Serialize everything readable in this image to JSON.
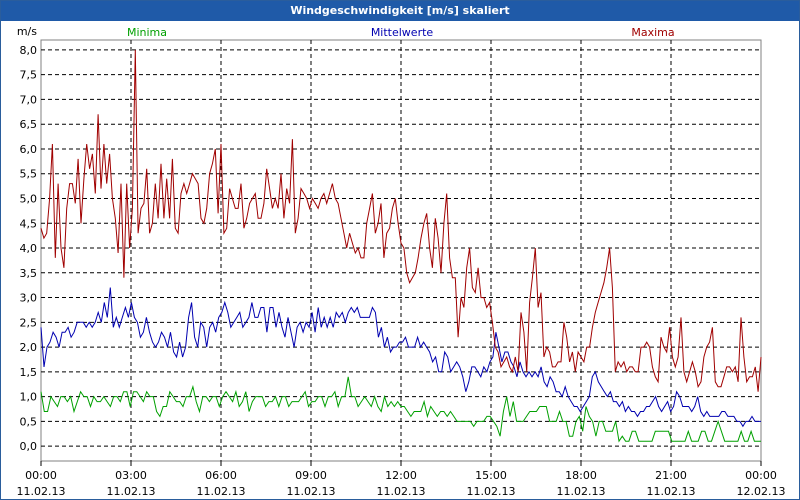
{
  "window": {
    "title": "Windgeschwindigkeit [m/s] skaliert"
  },
  "chart_data": {
    "type": "line",
    "title": "Windgeschwindigkeit [m/s] skaliert",
    "ylabel": "m/s",
    "xlabel": "",
    "ylim": [
      -0.3,
      8.2
    ],
    "xlim": [
      0,
      24
    ],
    "grid": true,
    "legend_position": "top",
    "y_ticks": [
      "0,0",
      "0,5",
      "1,0",
      "1,5",
      "2,0",
      "2,5",
      "3,0",
      "3,5",
      "4,0",
      "4,5",
      "5,0",
      "5,5",
      "6,0",
      "6,5",
      "7,0",
      "7,5",
      "8,0"
    ],
    "x_ticks": [
      {
        "time": "00:00",
        "date": "11.02.13"
      },
      {
        "time": "03:00",
        "date": "11.02.13"
      },
      {
        "time": "06:00",
        "date": "11.02.13"
      },
      {
        "time": "09:00",
        "date": "11.02.13"
      },
      {
        "time": "12:00",
        "date": "11.02.13"
      },
      {
        "time": "15:00",
        "date": "11.02.13"
      },
      {
        "time": "18:00",
        "date": "11.02.13"
      },
      {
        "time": "21:00",
        "date": "11.02.13"
      },
      {
        "time": "00:00",
        "date": "12.02.13"
      }
    ],
    "series": [
      {
        "name": "Minima",
        "color": "#00a000",
        "values": [
          1.1,
          0.7,
          0.7,
          1.0,
          0.9,
          0.8,
          1.0,
          1.0,
          0.9,
          1.0,
          0.7,
          0.9,
          1.1,
          1.0,
          1.0,
          0.8,
          1.0,
          0.9,
          0.9,
          1.0,
          0.9,
          0.8,
          1.0,
          1.0,
          0.9,
          1.1,
          1.1,
          0.8,
          1.1,
          1.1,
          1.0,
          0.9,
          1.1,
          1.0,
          1.0,
          0.7,
          0.6,
          0.8,
          0.8,
          1.1,
          1.0,
          0.9,
          0.9,
          0.8,
          1.0,
          1.0,
          1.2,
          0.9,
          0.7,
          1.0,
          1.0,
          0.9,
          1.0,
          1.0,
          0.8,
          1.0,
          1.1,
          1.0,
          0.9,
          1.1,
          0.8,
          0.9,
          1.1,
          0.7,
          0.9,
          1.0,
          1.0,
          1.0,
          0.8,
          0.9,
          0.9,
          1.0,
          0.8,
          1.0,
          1.0,
          0.8,
          0.9,
          0.9,
          0.9,
          1.0,
          1.1,
          0.8,
          0.9,
          0.9,
          1.0,
          1.0,
          0.8,
          1.0,
          1.0,
          1.1,
          0.8,
          1.0,
          1.0,
          1.4,
          1.0,
          1.0,
          0.8,
          0.9,
          1.0,
          0.9,
          0.8,
          1.0,
          0.8,
          0.7,
          1.0,
          0.8,
          0.9,
          0.8,
          0.9,
          0.8,
          0.8,
          0.7,
          0.6,
          0.7,
          0.7,
          0.7,
          0.9,
          0.6,
          0.8,
          0.7,
          0.6,
          0.7,
          0.7,
          0.6,
          0.7,
          0.6,
          0.5,
          0.5,
          0.5,
          0.5,
          0.5,
          0.4,
          0.5,
          0.5,
          0.5,
          0.6,
          0.6,
          0.5,
          0.4,
          0.2,
          0.7,
          1.0,
          0.6,
          0.9,
          0.5,
          0.5,
          0.5,
          0.6,
          0.7,
          0.7,
          0.7,
          0.8,
          0.8,
          0.8,
          0.5,
          0.5,
          0.5,
          0.7,
          0.5,
          0.5,
          0.2,
          0.2,
          0.5,
          0.6,
          0.3,
          0.8,
          0.6,
          0.5,
          0.2,
          0.5,
          0.5,
          0.3,
          0.3,
          0.3,
          0.5,
          0.1,
          0.2,
          0.1,
          0.1,
          0.3,
          0.3,
          0.1,
          0.1,
          0.1,
          0.1,
          0.1,
          0.3,
          0.3,
          0.3,
          0.3,
          0.3,
          0.1,
          0.1,
          0.1,
          0.1,
          0.1,
          0.3,
          0.1,
          0.1,
          0.1,
          0.3,
          0.3,
          0.1,
          0.1,
          0.3,
          0.5,
          0.3,
          0.1,
          0.1,
          0.1,
          0.1,
          0.1,
          0.3,
          0.1,
          0.1,
          0.3,
          0.1,
          0.1,
          0.1
        ]
      },
      {
        "name": "Mittelwerte",
        "color": "#0000b0",
        "values": [
          2.4,
          1.6,
          2.0,
          2.1,
          2.3,
          2.2,
          2.0,
          2.3,
          2.3,
          2.4,
          2.2,
          2.3,
          2.5,
          2.5,
          2.5,
          2.4,
          2.5,
          2.4,
          2.5,
          2.7,
          2.5,
          2.9,
          2.6,
          3.2,
          2.4,
          2.6,
          2.4,
          2.6,
          2.8,
          2.6,
          2.9,
          2.6,
          2.5,
          2.2,
          2.3,
          2.6,
          2.3,
          2.1,
          2.0,
          2.1,
          2.3,
          2.2,
          2.0,
          2.3,
          1.9,
          1.8,
          2.1,
          1.8,
          2.0,
          2.6,
          2.9,
          2.2,
          2.0,
          2.5,
          2.4,
          2.0,
          2.4,
          2.5,
          2.3,
          2.6,
          2.7,
          2.9,
          2.7,
          2.4,
          2.5,
          2.6,
          2.7,
          2.4,
          2.5,
          2.6,
          2.9,
          2.6,
          2.6,
          2.8,
          2.8,
          2.3,
          2.8,
          2.8,
          2.4,
          2.7,
          2.4,
          2.2,
          2.6,
          2.3,
          2.0,
          2.4,
          2.5,
          2.3,
          2.5,
          2.4,
          2.7,
          2.3,
          2.8,
          2.4,
          2.6,
          2.4,
          2.6,
          2.4,
          2.7,
          2.6,
          2.7,
          2.5,
          2.7,
          2.8,
          2.7,
          2.8,
          2.6,
          2.6,
          2.6,
          2.6,
          2.8,
          2.7,
          2.2,
          2.4,
          2.0,
          2.2,
          1.9,
          2.0,
          2.0,
          2.1,
          2.1,
          2.2,
          2.0,
          2.0,
          2.0,
          2.2,
          2.0,
          2.1,
          2.0,
          1.9,
          1.7,
          1.8,
          1.5,
          1.5,
          1.9,
          1.8,
          1.5,
          1.6,
          1.7,
          1.6,
          1.4,
          1.1,
          1.3,
          1.6,
          1.6,
          1.5,
          1.4,
          1.6,
          1.5,
          1.7,
          1.8,
          2.3,
          2.0,
          1.7,
          1.9,
          1.9,
          1.7,
          1.6,
          1.4,
          1.7,
          1.5,
          1.4,
          1.5,
          1.4,
          1.5,
          1.4,
          1.6,
          1.3,
          1.2,
          1.4,
          1.3,
          1.1,
          1.1,
          1.0,
          1.2,
          1.0,
          0.9,
          0.8,
          0.8,
          0.7,
          0.8,
          0.9,
          1.0,
          1.4,
          1.5,
          1.3,
          1.2,
          1.1,
          1.0,
          1.1,
          0.9,
          0.9,
          0.8,
          0.9,
          0.7,
          0.8,
          0.7,
          0.7,
          0.6,
          0.7,
          0.7,
          0.8,
          0.8,
          0.9,
          1.0,
          0.8,
          0.7,
          0.8,
          0.9,
          0.7,
          0.8,
          1.1,
          1.0,
          0.8,
          0.8,
          0.8,
          0.7,
          0.8,
          1.0,
          0.7,
          0.6,
          0.7,
          0.6,
          0.6,
          0.6,
          0.6,
          0.7,
          0.7,
          0.6,
          0.6,
          0.6,
          0.5,
          0.5,
          0.4,
          0.5,
          0.5,
          0.6,
          0.5,
          0.5,
          0.5
        ]
      },
      {
        "name": "Maxima",
        "color": "#a00000",
        "values": [
          4.4,
          4.2,
          4.3,
          5.0,
          6.1,
          3.8,
          5.3,
          4.0,
          3.6,
          4.8,
          5.3,
          5.3,
          4.9,
          5.8,
          4.5,
          5.4,
          6.1,
          5.6,
          5.9,
          5.1,
          6.7,
          5.2,
          6.1,
          5.3,
          5.9,
          5.0,
          4.6,
          3.9,
          5.3,
          3.4,
          5.3,
          4.0,
          4.8,
          8.0,
          4.3,
          4.8,
          4.9,
          5.6,
          4.3,
          4.5,
          5.3,
          4.6,
          5.7,
          4.6,
          5.4,
          4.6,
          5.8,
          4.4,
          4.3,
          5.1,
          5.3,
          5.1,
          5.3,
          5.5,
          5.4,
          5.3,
          4.6,
          4.5,
          4.8,
          5.5,
          5.7,
          6.0,
          4.7,
          6.1,
          4.3,
          4.4,
          5.2,
          5.0,
          4.8,
          4.8,
          5.3,
          4.4,
          4.6,
          4.9,
          5.0,
          5.1,
          4.6,
          4.6,
          4.9,
          5.6,
          5.2,
          4.8,
          5.0,
          4.8,
          5.5,
          4.6,
          5.2,
          4.9,
          6.2,
          4.3,
          4.6,
          5.2,
          5.1,
          5.0,
          4.8,
          5.0,
          4.9,
          4.8,
          5.0,
          5.1,
          4.9,
          5.1,
          5.3,
          5.0,
          4.9,
          4.6,
          4.3,
          4.0,
          4.3,
          4.1,
          3.9,
          4.0,
          3.8,
          3.8,
          4.5,
          4.8,
          5.1,
          4.3,
          4.5,
          4.9,
          3.8,
          4.3,
          4.4,
          4.8,
          5.0,
          4.5,
          4.1,
          4.0,
          3.5,
          3.3,
          3.4,
          3.5,
          3.8,
          4.2,
          4.5,
          4.7,
          4.0,
          3.6,
          4.6,
          4.2,
          3.5,
          4.5,
          5.1,
          3.8,
          3.4,
          3.4,
          2.2,
          3.0,
          2.8,
          3.6,
          4.0,
          3.2,
          3.1,
          3.6,
          3.0,
          3.0,
          2.8,
          2.9,
          2.5,
          2.0,
          1.9,
          1.6,
          1.7,
          1.8,
          1.6,
          1.5,
          1.8,
          1.5,
          2.7,
          2.3,
          1.5,
          2.9,
          3.4,
          4.0,
          2.8,
          3.1,
          1.8,
          2.0,
          1.9,
          1.6,
          1.6,
          1.7,
          1.7,
          2.5,
          2.2,
          1.7,
          1.9,
          1.5,
          1.9,
          1.8,
          1.7,
          2.0,
          2.0,
          2.4,
          2.7,
          2.9,
          3.1,
          3.3,
          3.6,
          4.0,
          3.2,
          1.5,
          1.7,
          1.6,
          1.7,
          1.5,
          1.6,
          1.6,
          1.5,
          1.5,
          2.0,
          2.0,
          2.1,
          2.0,
          1.6,
          1.4,
          1.3,
          2.2,
          2.0,
          1.9,
          2.4,
          1.8,
          1.6,
          1.8,
          2.6,
          1.5,
          1.3,
          1.5,
          1.7,
          1.5,
          1.2,
          1.3,
          1.8,
          2.0,
          2.1,
          2.4,
          1.3,
          1.2,
          1.2,
          1.4,
          1.6,
          1.6,
          1.5,
          1.6,
          1.3,
          2.6,
          1.8,
          1.3,
          1.4,
          1.4,
          1.6,
          1.1,
          1.8
        ]
      }
    ]
  }
}
